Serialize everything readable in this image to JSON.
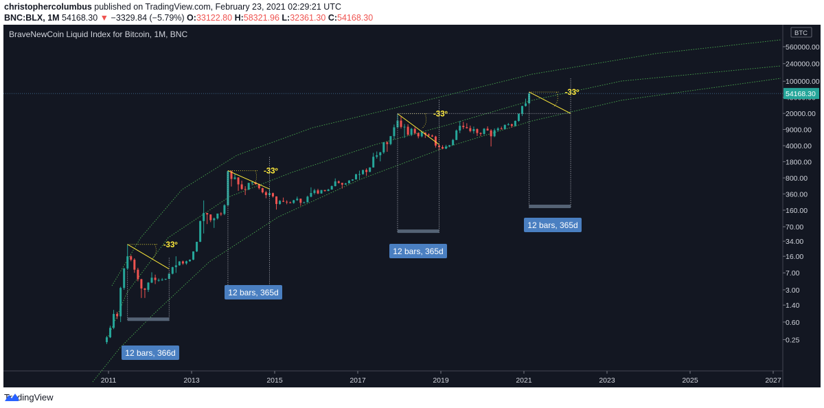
{
  "header": {
    "author": "christophercolumbus",
    "published_text": "published on TradingView.com, February 23, 2021 02:29:21 UTC",
    "symbol": "BNC:BLX, 1M",
    "last": "54168.30",
    "change_arrow": "▼",
    "change": "−3329.84 (−5.79%)",
    "open_label": "O:",
    "open": "33122.80",
    "high_label": "H:",
    "high": "58321.96",
    "low_label": "L:",
    "low": "32361.30",
    "close_label": "C:",
    "close": "54168.30"
  },
  "chart_title": "BraveNewCoin Liquid Index for Bitcoin, 1M, BNC",
  "currency_label": "BTC",
  "price_tag": "54168.30",
  "footer": {
    "brand": "TradingView",
    "icon": "tradingview-logo-icon"
  },
  "colors": {
    "background": "#131722",
    "bull": "#26a69a",
    "bear": "#ef5350",
    "trend": "#4caf50",
    "annotation": "#ffeb3b",
    "range_box": "#4a7fc1"
  },
  "chart_data": {
    "type": "candlestick",
    "title": "BraveNewCoin Liquid Index for Bitcoin, 1M, BNC",
    "y_scale": "log",
    "y_ticks": [
      "560000.00",
      "240000.00",
      "100000.00",
      "45000.00",
      "20000.00",
      "9000.00",
      "4000.00",
      "1800.00",
      "800.00",
      "360.00",
      "160.00",
      "70.00",
      "34.00",
      "16.00",
      "7.00",
      "3.00",
      "1.40",
      "0.60",
      "0.25"
    ],
    "x_ticks": [
      "2011",
      "2013",
      "2015",
      "2017",
      "2019",
      "2021",
      "2023",
      "2025",
      "2027"
    ],
    "series": [
      {
        "t": "2010-12",
        "o": 0.22,
        "h": 0.3,
        "l": 0.2,
        "c": 0.28
      },
      {
        "t": "2011-01",
        "o": 0.28,
        "h": 0.5,
        "l": 0.27,
        "c": 0.45
      },
      {
        "t": "2011-02",
        "o": 0.45,
        "h": 1.1,
        "l": 0.42,
        "c": 0.9
      },
      {
        "t": "2011-03",
        "o": 0.9,
        "h": 1.0,
        "l": 0.7,
        "c": 0.8
      },
      {
        "t": "2011-04",
        "o": 0.8,
        "h": 3.5,
        "l": 0.6,
        "c": 3.3
      },
      {
        "t": "2011-05",
        "o": 3.3,
        "h": 9.0,
        "l": 3.0,
        "c": 8.7
      },
      {
        "t": "2011-06",
        "o": 8.7,
        "h": 29.0,
        "l": 8.0,
        "c": 16.0
      },
      {
        "t": "2011-07",
        "o": 16.0,
        "h": 17.0,
        "l": 12.5,
        "c": 13.5
      },
      {
        "t": "2011-08",
        "o": 13.5,
        "h": 14.5,
        "l": 7.0,
        "c": 8.2
      },
      {
        "t": "2011-09",
        "o": 8.2,
        "h": 9.0,
        "l": 4.6,
        "c": 5.1
      },
      {
        "t": "2011-10",
        "o": 5.1,
        "h": 5.2,
        "l": 2.0,
        "c": 3.2
      },
      {
        "t": "2011-11",
        "o": 3.2,
        "h": 3.3,
        "l": 2.0,
        "c": 3.0
      },
      {
        "t": "2011-12",
        "o": 3.0,
        "h": 4.4,
        "l": 2.7,
        "c": 4.3
      },
      {
        "t": "2012-01",
        "o": 4.3,
        "h": 7.2,
        "l": 4.2,
        "c": 5.5
      },
      {
        "t": "2012-02",
        "o": 5.5,
        "h": 6.4,
        "l": 4.0,
        "c": 4.9
      },
      {
        "t": "2012-03",
        "o": 4.9,
        "h": 5.3,
        "l": 4.5,
        "c": 4.9
      },
      {
        "t": "2012-04",
        "o": 4.9,
        "h": 5.4,
        "l": 4.7,
        "c": 5.0
      },
      {
        "t": "2012-05",
        "o": 5.0,
        "h": 5.2,
        "l": 4.9,
        "c": 5.2
      },
      {
        "t": "2012-06",
        "o": 5.2,
        "h": 6.8,
        "l": 5.1,
        "c": 6.7
      },
      {
        "t": "2012-07",
        "o": 6.7,
        "h": 9.5,
        "l": 6.5,
        "c": 9.3
      },
      {
        "t": "2012-08",
        "o": 9.3,
        "h": 16.0,
        "l": 7.0,
        "c": 10.2
      },
      {
        "t": "2012-09",
        "o": 10.2,
        "h": 12.5,
        "l": 10.0,
        "c": 12.4
      },
      {
        "t": "2012-10",
        "o": 12.4,
        "h": 12.9,
        "l": 10.5,
        "c": 11.2
      },
      {
        "t": "2012-11",
        "o": 11.2,
        "h": 12.9,
        "l": 10.5,
        "c": 12.5
      },
      {
        "t": "2012-12",
        "o": 12.5,
        "h": 13.7,
        "l": 12.2,
        "c": 13.5
      },
      {
        "t": "2013-01",
        "o": 13.5,
        "h": 20.5,
        "l": 13.2,
        "c": 20.4
      },
      {
        "t": "2013-02",
        "o": 20.4,
        "h": 33.0,
        "l": 19.8,
        "c": 33.0
      },
      {
        "t": "2013-03",
        "o": 33.0,
        "h": 95.0,
        "l": 32.5,
        "c": 93.0
      },
      {
        "t": "2013-04",
        "o": 93.0,
        "h": 260.0,
        "l": 50.0,
        "c": 139.0
      },
      {
        "t": "2013-05",
        "o": 139.0,
        "h": 140.0,
        "l": 80.0,
        "c": 129.0
      },
      {
        "t": "2013-06",
        "o": 129.0,
        "h": 130.0,
        "l": 88.0,
        "c": 97.0
      },
      {
        "t": "2013-07",
        "o": 97.0,
        "h": 111.0,
        "l": 66.0,
        "c": 106.0
      },
      {
        "t": "2013-08",
        "o": 106.0,
        "h": 135.0,
        "l": 100.0,
        "c": 135.0
      },
      {
        "t": "2013-09",
        "o": 135.0,
        "h": 145.0,
        "l": 120.0,
        "c": 133.0
      },
      {
        "t": "2013-10",
        "o": 133.0,
        "h": 215.0,
        "l": 125.0,
        "c": 205.0
      },
      {
        "t": "2013-11",
        "o": 205.0,
        "h": 1150.0,
        "l": 200.0,
        "c": 1120.0
      },
      {
        "t": "2013-12",
        "o": 1120.0,
        "h": 1160.0,
        "l": 520.0,
        "c": 760.0
      },
      {
        "t": "2014-01",
        "o": 760.0,
        "h": 1000.0,
        "l": 740.0,
        "c": 820.0
      },
      {
        "t": "2014-02",
        "o": 820.0,
        "h": 830.0,
        "l": 420.0,
        "c": 580.0
      },
      {
        "t": "2014-03",
        "o": 580.0,
        "h": 700.0,
        "l": 440.0,
        "c": 460.0
      },
      {
        "t": "2014-04",
        "o": 460.0,
        "h": 530.0,
        "l": 340.0,
        "c": 445.0
      },
      {
        "t": "2014-05",
        "o": 445.0,
        "h": 630.0,
        "l": 440.0,
        "c": 625.0
      },
      {
        "t": "2014-06",
        "o": 625.0,
        "h": 680.0,
        "l": 560.0,
        "c": 640.0
      },
      {
        "t": "2014-07",
        "o": 640.0,
        "h": 650.0,
        "l": 570.0,
        "c": 585.0
      },
      {
        "t": "2014-08",
        "o": 585.0,
        "h": 600.0,
        "l": 450.0,
        "c": 480.0
      },
      {
        "t": "2014-09",
        "o": 480.0,
        "h": 490.0,
        "l": 370.0,
        "c": 390.0
      },
      {
        "t": "2014-10",
        "o": 390.0,
        "h": 420.0,
        "l": 290.0,
        "c": 340.0
      },
      {
        "t": "2014-11",
        "o": 340.0,
        "h": 460.0,
        "l": 310.0,
        "c": 375.0
      },
      {
        "t": "2014-12",
        "o": 375.0,
        "h": 385.0,
        "l": 300.0,
        "c": 318.0
      },
      {
        "t": "2015-01",
        "o": 318.0,
        "h": 320.0,
        "l": 165.0,
        "c": 218.0
      },
      {
        "t": "2015-02",
        "o": 218.0,
        "h": 265.0,
        "l": 210.0,
        "c": 254.0
      },
      {
        "t": "2015-03",
        "o": 254.0,
        "h": 300.0,
        "l": 240.0,
        "c": 244.0
      },
      {
        "t": "2015-04",
        "o": 244.0,
        "h": 262.0,
        "l": 215.0,
        "c": 236.0
      },
      {
        "t": "2015-05",
        "o": 236.0,
        "h": 246.0,
        "l": 225.0,
        "c": 230.0
      },
      {
        "t": "2015-06",
        "o": 230.0,
        "h": 268.0,
        "l": 220.0,
        "c": 263.0
      },
      {
        "t": "2015-07",
        "o": 263.0,
        "h": 315.0,
        "l": 255.0,
        "c": 284.0
      },
      {
        "t": "2015-08",
        "o": 284.0,
        "h": 285.0,
        "l": 199.0,
        "c": 231.0
      },
      {
        "t": "2015-09",
        "o": 231.0,
        "h": 245.0,
        "l": 225.0,
        "c": 236.0
      },
      {
        "t": "2015-10",
        "o": 236.0,
        "h": 330.0,
        "l": 235.0,
        "c": 314.0
      },
      {
        "t": "2015-11",
        "o": 314.0,
        "h": 500.0,
        "l": 305.0,
        "c": 377.0
      },
      {
        "t": "2015-12",
        "o": 377.0,
        "h": 465.0,
        "l": 350.0,
        "c": 430.0
      },
      {
        "t": "2016-01",
        "o": 430.0,
        "h": 465.0,
        "l": 355.0,
        "c": 368.0
      },
      {
        "t": "2016-02",
        "o": 368.0,
        "h": 440.0,
        "l": 365.0,
        "c": 437.0
      },
      {
        "t": "2016-03",
        "o": 437.0,
        "h": 440.0,
        "l": 405.0,
        "c": 416.0
      },
      {
        "t": "2016-04",
        "o": 416.0,
        "h": 465.0,
        "l": 415.0,
        "c": 448.0
      },
      {
        "t": "2016-05",
        "o": 448.0,
        "h": 550.0,
        "l": 445.0,
        "c": 531.0
      },
      {
        "t": "2016-06",
        "o": 531.0,
        "h": 780.0,
        "l": 525.0,
        "c": 673.0
      },
      {
        "t": "2016-07",
        "o": 673.0,
        "h": 705.0,
        "l": 605.0,
        "c": 624.0
      },
      {
        "t": "2016-08",
        "o": 624.0,
        "h": 627.0,
        "l": 470.0,
        "c": 573.0
      },
      {
        "t": "2016-09",
        "o": 573.0,
        "h": 625.0,
        "l": 570.0,
        "c": 609.0
      },
      {
        "t": "2016-10",
        "o": 609.0,
        "h": 720.0,
        "l": 605.0,
        "c": 701.0
      },
      {
        "t": "2016-11",
        "o": 701.0,
        "h": 750.0,
        "l": 690.0,
        "c": 742.0
      },
      {
        "t": "2016-12",
        "o": 742.0,
        "h": 980.0,
        "l": 740.0,
        "c": 963.0
      },
      {
        "t": "2017-01",
        "o": 963.0,
        "h": 1150.0,
        "l": 750.0,
        "c": 966.0
      },
      {
        "t": "2017-02",
        "o": 966.0,
        "h": 1200.0,
        "l": 940.0,
        "c": 1190.0
      },
      {
        "t": "2017-03",
        "o": 1190.0,
        "h": 1290.0,
        "l": 890.0,
        "c": 1080.0
      },
      {
        "t": "2017-04",
        "o": 1080.0,
        "h": 1360.0,
        "l": 1070.0,
        "c": 1350.0
      },
      {
        "t": "2017-05",
        "o": 1350.0,
        "h": 2800.0,
        "l": 1340.0,
        "c": 2300.0
      },
      {
        "t": "2017-06",
        "o": 2300.0,
        "h": 3000.0,
        "l": 2100.0,
        "c": 2480.0
      },
      {
        "t": "2017-07",
        "o": 2480.0,
        "h": 2950.0,
        "l": 1830.0,
        "c": 2870.0
      },
      {
        "t": "2017-08",
        "o": 2870.0,
        "h": 4750.0,
        "l": 2670.0,
        "c": 4730.0
      },
      {
        "t": "2017-09",
        "o": 4730.0,
        "h": 4980.0,
        "l": 2950.0,
        "c": 4340.0
      },
      {
        "t": "2017-10",
        "o": 4340.0,
        "h": 6450.0,
        "l": 4100.0,
        "c": 6450.0
      },
      {
        "t": "2017-11",
        "o": 6450.0,
        "h": 11500.0,
        "l": 5500.0,
        "c": 10000.0
      },
      {
        "t": "2017-12",
        "o": 10000.0,
        "h": 19800.0,
        "l": 9800.0,
        "c": 14000.0
      },
      {
        "t": "2018-01",
        "o": 14000.0,
        "h": 17200.0,
        "l": 9400.0,
        "c": 10200.0
      },
      {
        "t": "2018-02",
        "o": 10200.0,
        "h": 11800.0,
        "l": 5900.0,
        "c": 10300.0
      },
      {
        "t": "2018-03",
        "o": 10300.0,
        "h": 11700.0,
        "l": 6600.0,
        "c": 6930.0
      },
      {
        "t": "2018-04",
        "o": 6930.0,
        "h": 9750.0,
        "l": 6450.0,
        "c": 9240.0
      },
      {
        "t": "2018-05",
        "o": 9240.0,
        "h": 9990.0,
        "l": 7040.0,
        "c": 7490.0
      },
      {
        "t": "2018-06",
        "o": 7490.0,
        "h": 7750.0,
        "l": 5780.0,
        "c": 6390.0
      },
      {
        "t": "2018-07",
        "o": 6390.0,
        "h": 8480.0,
        "l": 6070.0,
        "c": 7730.0
      },
      {
        "t": "2018-08",
        "o": 7730.0,
        "h": 7760.0,
        "l": 5880.0,
        "c": 7030.0
      },
      {
        "t": "2018-09",
        "o": 7030.0,
        "h": 7400.0,
        "l": 6100.0,
        "c": 6630.0
      },
      {
        "t": "2018-10",
        "o": 6630.0,
        "h": 7000.0,
        "l": 6200.0,
        "c": 6320.0
      },
      {
        "t": "2018-11",
        "o": 6320.0,
        "h": 6570.0,
        "l": 3650.0,
        "c": 4030.0
      },
      {
        "t": "2018-12",
        "o": 4030.0,
        "h": 4250.0,
        "l": 3150.0,
        "c": 3740.0
      },
      {
        "t": "2019-01",
        "o": 3740.0,
        "h": 4100.0,
        "l": 3350.0,
        "c": 3460.0
      },
      {
        "t": "2019-02",
        "o": 3460.0,
        "h": 4180.0,
        "l": 3370.0,
        "c": 3830.0
      },
      {
        "t": "2019-03",
        "o": 3830.0,
        "h": 4130.0,
        "l": 3700.0,
        "c": 4100.0
      },
      {
        "t": "2019-04",
        "o": 4100.0,
        "h": 5600.0,
        "l": 4100.0,
        "c": 5330.0
      },
      {
        "t": "2019-05",
        "o": 5330.0,
        "h": 9000.0,
        "l": 5300.0,
        "c": 8550.0
      },
      {
        "t": "2019-06",
        "o": 8550.0,
        "h": 13800.0,
        "l": 7500.0,
        "c": 10800.0
      },
      {
        "t": "2019-07",
        "o": 10800.0,
        "h": 13100.0,
        "l": 9100.0,
        "c": 10100.0
      },
      {
        "t": "2019-08",
        "o": 10100.0,
        "h": 12300.0,
        "l": 9400.0,
        "c": 9600.0
      },
      {
        "t": "2019-09",
        "o": 9600.0,
        "h": 10900.0,
        "l": 7800.0,
        "c": 8300.0
      },
      {
        "t": "2019-10",
        "o": 8300.0,
        "h": 10400.0,
        "l": 7300.0,
        "c": 9150.0
      },
      {
        "t": "2019-11",
        "o": 9150.0,
        "h": 9500.0,
        "l": 6500.0,
        "c": 7550.0
      },
      {
        "t": "2019-12",
        "o": 7550.0,
        "h": 7750.0,
        "l": 6450.0,
        "c": 7200.0
      },
      {
        "t": "2020-01",
        "o": 7200.0,
        "h": 9600.0,
        "l": 6850.0,
        "c": 9350.0
      },
      {
        "t": "2020-02",
        "o": 9350.0,
        "h": 10500.0,
        "l": 8450.0,
        "c": 8550.0
      },
      {
        "t": "2020-03",
        "o": 8550.0,
        "h": 9150.0,
        "l": 3850.0,
        "c": 6400.0
      },
      {
        "t": "2020-04",
        "o": 6400.0,
        "h": 9450.0,
        "l": 6150.0,
        "c": 8650.0
      },
      {
        "t": "2020-05",
        "o": 8650.0,
        "h": 10050.0,
        "l": 8150.0,
        "c": 9450.0
      },
      {
        "t": "2020-06",
        "o": 9450.0,
        "h": 10350.0,
        "l": 8950.0,
        "c": 9150.0
      },
      {
        "t": "2020-07",
        "o": 9150.0,
        "h": 11450.0,
        "l": 8950.0,
        "c": 11350.0
      },
      {
        "t": "2020-08",
        "o": 11350.0,
        "h": 12450.0,
        "l": 10950.0,
        "c": 11650.0
      },
      {
        "t": "2020-09",
        "o": 11650.0,
        "h": 12050.0,
        "l": 9850.0,
        "c": 10750.0
      },
      {
        "t": "2020-10",
        "o": 10750.0,
        "h": 14050.0,
        "l": 10400.0,
        "c": 13800.0
      },
      {
        "t": "2020-11",
        "o": 13800.0,
        "h": 19800.0,
        "l": 13200.0,
        "c": 19700.0
      },
      {
        "t": "2020-12",
        "o": 19700.0,
        "h": 29300.0,
        "l": 17600.0,
        "c": 29000.0
      },
      {
        "t": "2021-01",
        "o": 29000.0,
        "h": 41900.0,
        "l": 28200.0,
        "c": 33100.0
      },
      {
        "t": "2021-02",
        "o": 33122.8,
        "h": 58321.96,
        "l": 32361.3,
        "c": 54168.3
      }
    ],
    "annotations": [
      {
        "text": "-33º"
      },
      {
        "text": "-33º"
      },
      {
        "text": "-33º"
      },
      {
        "text": "-33º"
      }
    ],
    "ranges": [
      {
        "text": "12 bars, 366d"
      },
      {
        "text": "12 bars, 365d"
      },
      {
        "text": "12 bars, 365d"
      },
      {
        "text": "12 bars, 365d"
      }
    ]
  }
}
